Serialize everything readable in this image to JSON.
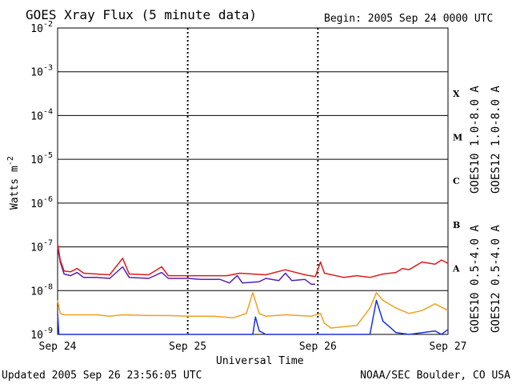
{
  "header": {
    "title": "GOES Xray Flux (5 minute data)",
    "begin": "Begin:  2005 Sep 24 0000 UTC"
  },
  "footer": {
    "updated": "Updated 2005 Sep 26 23:56:05 UTC",
    "source": "NOAA/SEC Boulder, CO USA"
  },
  "colors": {
    "goes10_long": "#5a1eb4",
    "goes12_long": "#e01a1a",
    "goes10_short": "#f0a020",
    "goes12_short": "#1a30e0",
    "axes": "#000000"
  },
  "chart_data": {
    "type": "line",
    "title": "GOES Xray Flux (5 minute data)",
    "xlabel": "Universal Time",
    "ylabel": "Watts m",
    "ylabel_sup": "-2",
    "yscale": "log",
    "ylim": [
      1e-09,
      0.01
    ],
    "xlim": [
      0,
      3
    ],
    "grid": true,
    "y_ticks": [
      {
        "base": "10",
        "exp": "-2",
        "value": 0.01
      },
      {
        "base": "10",
        "exp": "-3",
        "value": 0.001
      },
      {
        "base": "10",
        "exp": "-4",
        "value": 0.0001
      },
      {
        "base": "10",
        "exp": "-5",
        "value": 1e-05
      },
      {
        "base": "10",
        "exp": "-6",
        "value": 1e-06
      },
      {
        "base": "10",
        "exp": "-7",
        "value": 1e-07
      },
      {
        "base": "10",
        "exp": "-8",
        "value": 1e-08
      },
      {
        "base": "10",
        "exp": "-9",
        "value": 1e-09
      }
    ],
    "x_ticks": [
      {
        "label": "Sep 24",
        "value": 0
      },
      {
        "label": "Sep 25",
        "value": 1
      },
      {
        "label": "Sep 26",
        "value": 2
      },
      {
        "label": "Sep 27",
        "value": 3
      }
    ],
    "class_labels": [
      {
        "label": "X",
        "value": 0.00032
      },
      {
        "label": "M",
        "value": 3.2e-05
      },
      {
        "label": "C",
        "value": 3.2e-06
      },
      {
        "label": "B",
        "value": 3.2e-07
      },
      {
        "label": "A",
        "value": 3.2e-08
      }
    ],
    "legend_placement": "right (rotated)",
    "series": [
      {
        "name": "GOES10 1.0-8.0 A",
        "color": "#5a1eb4",
        "points": [
          [
            0,
            1e-07
          ],
          [
            0.02,
            4.5e-08
          ],
          [
            0.05,
            2.4e-08
          ],
          [
            0.1,
            2.2e-08
          ],
          [
            0.15,
            2.6e-08
          ],
          [
            0.2,
            2e-08
          ],
          [
            0.3,
            2e-08
          ],
          [
            0.4,
            1.9e-08
          ],
          [
            0.5,
            3.5e-08
          ],
          [
            0.55,
            2e-08
          ],
          [
            0.7,
            1.9e-08
          ],
          [
            0.8,
            2.6e-08
          ],
          [
            0.85,
            1.9e-08
          ],
          [
            1.0,
            1.9e-08
          ],
          [
            1.1,
            1.8e-08
          ],
          [
            1.25,
            1.8e-08
          ],
          [
            1.32,
            1.5e-08
          ],
          [
            1.38,
            2.2e-08
          ],
          [
            1.42,
            1.5e-08
          ],
          [
            1.55,
            1.6e-08
          ],
          [
            1.6,
            1.9e-08
          ],
          [
            1.7,
            1.7e-08
          ],
          [
            1.75,
            2.5e-08
          ],
          [
            1.8,
            1.7e-08
          ],
          [
            1.9,
            1.8e-08
          ],
          [
            1.95,
            1.4e-08
          ],
          [
            1.98,
            1.4e-08
          ]
        ]
      },
      {
        "name": "GOES12 1.0-8.0 A",
        "color": "#e01a1a",
        "points": [
          [
            0,
            1.2e-07
          ],
          [
            0.02,
            5e-08
          ],
          [
            0.05,
            2.8e-08
          ],
          [
            0.1,
            2.7e-08
          ],
          [
            0.15,
            3.2e-08
          ],
          [
            0.2,
            2.5e-08
          ],
          [
            0.3,
            2.4e-08
          ],
          [
            0.4,
            2.3e-08
          ],
          [
            0.5,
            5.5e-08
          ],
          [
            0.55,
            2.4e-08
          ],
          [
            0.7,
            2.3e-08
          ],
          [
            0.8,
            3.5e-08
          ],
          [
            0.85,
            2.2e-08
          ],
          [
            1.0,
            2.2e-08
          ],
          [
            1.1,
            2.2e-08
          ],
          [
            1.3,
            2.2e-08
          ],
          [
            1.4,
            2.5e-08
          ],
          [
            1.5,
            2.4e-08
          ],
          [
            1.6,
            2.3e-08
          ],
          [
            1.75,
            3e-08
          ],
          [
            1.9,
            2.3e-08
          ],
          [
            1.98,
            2.1e-08
          ],
          [
            2.02,
            4.5e-08
          ],
          [
            2.05,
            2.5e-08
          ],
          [
            2.2,
            2e-08
          ],
          [
            2.3,
            2.2e-08
          ],
          [
            2.4,
            2e-08
          ],
          [
            2.5,
            2.4e-08
          ],
          [
            2.6,
            2.6e-08
          ],
          [
            2.65,
            3.2e-08
          ],
          [
            2.7,
            3e-08
          ],
          [
            2.8,
            4.5e-08
          ],
          [
            2.9,
            4e-08
          ],
          [
            2.95,
            5e-08
          ],
          [
            3.0,
            4.2e-08
          ]
        ]
      },
      {
        "name": "GOES10 0.5-4.0 A",
        "color": "#f0a020",
        "points": [
          [
            0,
            6e-09
          ],
          [
            0.02,
            3e-09
          ],
          [
            0.05,
            2.8e-09
          ],
          [
            0.3,
            2.8e-09
          ],
          [
            0.4,
            2.6e-09
          ],
          [
            0.5,
            2.8e-09
          ],
          [
            0.7,
            2.7e-09
          ],
          [
            0.85,
            2.7e-09
          ],
          [
            1.0,
            2.6e-09
          ],
          [
            1.2,
            2.6e-09
          ],
          [
            1.35,
            2.4e-09
          ],
          [
            1.45,
            3e-09
          ],
          [
            1.5,
            9e-09
          ],
          [
            1.55,
            3e-09
          ],
          [
            1.6,
            2.6e-09
          ],
          [
            1.75,
            2.8e-09
          ],
          [
            1.95,
            2.6e-09
          ],
          [
            2.02,
            3e-09
          ],
          [
            2.05,
            1.8e-09
          ],
          [
            2.1,
            1.4e-09
          ],
          [
            2.2,
            1.5e-09
          ],
          [
            2.3,
            1.6e-09
          ],
          [
            2.4,
            4e-09
          ],
          [
            2.45,
            9e-09
          ],
          [
            2.5,
            6e-09
          ],
          [
            2.6,
            4e-09
          ],
          [
            2.7,
            3e-09
          ],
          [
            2.8,
            3.5e-09
          ],
          [
            2.9,
            5e-09
          ],
          [
            3.0,
            3.5e-09
          ]
        ]
      },
      {
        "name": "GOES12 0.5-4.0 A",
        "color": "#1a30e0",
        "points": [
          [
            0,
            3e-09
          ],
          [
            0.01,
            1e-09
          ],
          [
            1.5,
            1e-09
          ],
          [
            1.52,
            2.5e-09
          ],
          [
            1.55,
            1.2e-09
          ],
          [
            1.6,
            1e-09
          ],
          [
            2.4,
            1e-09
          ],
          [
            2.45,
            6e-09
          ],
          [
            2.5,
            2e-09
          ],
          [
            2.55,
            1.5e-09
          ],
          [
            2.6,
            1.1e-09
          ],
          [
            2.7,
            1e-09
          ],
          [
            2.9,
            1.2e-09
          ],
          [
            2.95,
            1e-09
          ],
          [
            3.0,
            1.3e-09
          ]
        ]
      }
    ]
  }
}
